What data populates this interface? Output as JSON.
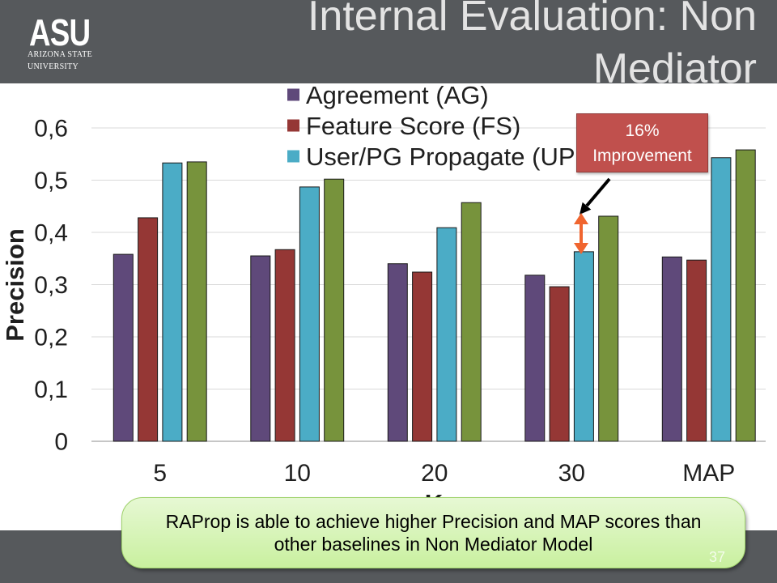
{
  "slide": {
    "logo": {
      "mark": "ASU",
      "line1": "ARIZONA STATE",
      "line2": "UNIVERSITY"
    },
    "title": "Internal Evaluation: Non Mediator",
    "improvement_callout": "16% Improvement",
    "summary": "RAProp is able to achieve higher Precision and MAP scores than other baselines in Non Mediator Model",
    "page_number": "37"
  },
  "colors": {
    "header_band": "#56595c",
    "footer_band": "#56595c",
    "title_text": "#e3e3e3",
    "improvement_callout": "#c0504d",
    "summary_callout": "#c9f09f",
    "pointer_arrow": "#000000",
    "gap_arrow": "#f0652f"
  },
  "chart_data": {
    "type": "bar",
    "categories": [
      "5",
      "10",
      "20",
      "30",
      "MAP"
    ],
    "series": [
      {
        "name": "Agreement (AG)",
        "color": "#5f497a",
        "values": [
          0.358,
          0.355,
          0.34,
          0.318,
          0.353
        ]
      },
      {
        "name": "Feature Score (FS)",
        "color": "#953735",
        "values": [
          0.428,
          0.367,
          0.324,
          0.296,
          0.347
        ]
      },
      {
        "name": "User/PG Propagate (UP",
        "color": "#4bacc6",
        "values": [
          0.533,
          0.487,
          0.409,
          0.363,
          0.543
        ]
      },
      {
        "color": "#77933c",
        "values": [
          0.535,
          0.502,
          0.457,
          0.431,
          0.558
        ]
      }
    ],
    "xlabel": "K",
    "ylabel": "Precision",
    "ylim": [
      0,
      0.6
    ],
    "yticks": [
      "0",
      "0,1",
      "0,2",
      "0,3",
      "0,4",
      "0,5",
      "0,6"
    ],
    "grid": true,
    "legend": "top"
  }
}
